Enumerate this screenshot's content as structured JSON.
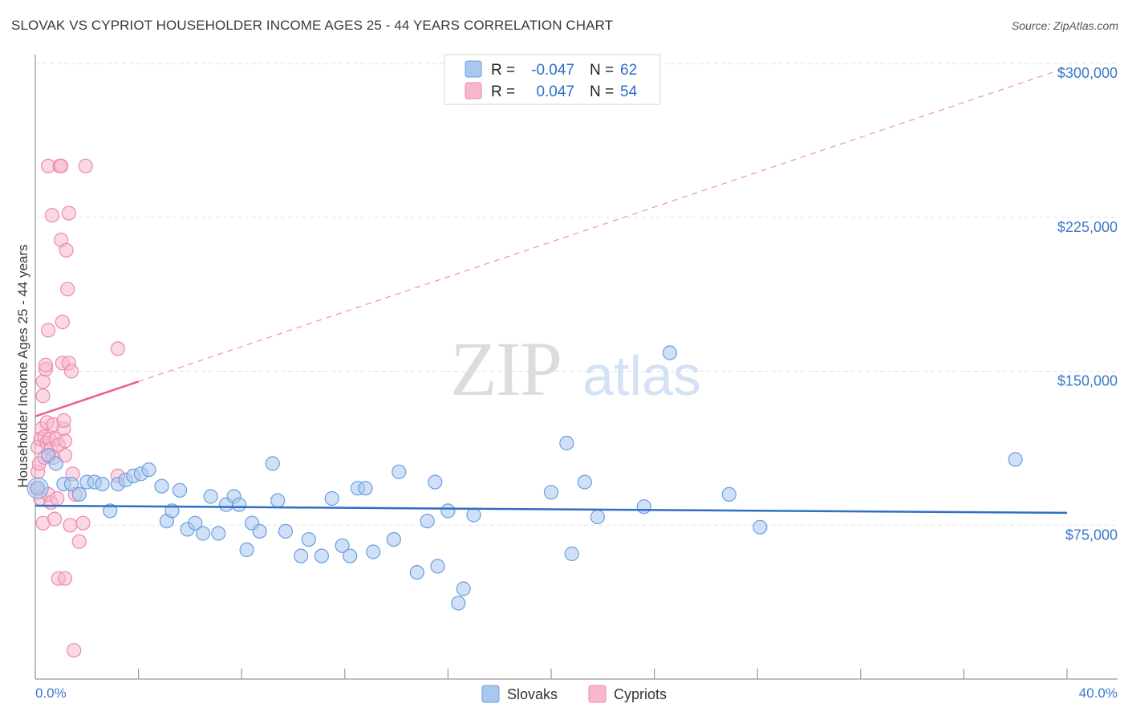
{
  "header": {
    "title": "SLOVAK VS CYPRIOT HOUSEHOLDER INCOME AGES 25 - 44 YEARS CORRELATION CHART",
    "source": "Source: ZipAtlas.com"
  },
  "watermark": {
    "zip": "ZIP",
    "atlas": "atlas"
  },
  "legend_top": {
    "rows": [
      {
        "r_label": "R =",
        "r_value": "-0.047",
        "n_label": "N =",
        "n_value": "62",
        "color": "#a9c8f0"
      },
      {
        "r_label": "R =",
        "r_value": "0.047",
        "n_label": "N =",
        "n_value": "54",
        "color": "#f7b8cc"
      }
    ]
  },
  "legend_bottom": {
    "items": [
      "Slovaks",
      "Cypriots"
    ]
  },
  "colors": {
    "blue_fill": "#a9c8f0",
    "blue_stroke": "#6b9de0",
    "blue_line": "#2f6fc6",
    "pink_fill": "#f7b8cc",
    "pink_stroke": "#ec8aa9",
    "pink_line": "#e8608a",
    "grid": "#e3e3e3",
    "axis_text": "#3b78c9"
  },
  "chart_data": {
    "type": "scatter",
    "title": "SLOVAK VS CYPRIOT HOUSEHOLDER INCOME AGES 25 - 44 YEARS CORRELATION CHART",
    "xlabel": "",
    "ylabel": "Householder Income Ages 25 - 44 years",
    "xlim": [
      0,
      40
    ],
    "ylim": [
      0,
      310000
    ],
    "x_tick_labels": [
      "0.0%",
      "40.0%"
    ],
    "y_ticks": [
      75000,
      150000,
      225000,
      300000
    ],
    "y_tick_labels": [
      "$75,000",
      "$150,000",
      "$225,000",
      "$300,000"
    ],
    "grid": true,
    "series": [
      {
        "name": "Slovaks",
        "r": -0.047,
        "n": 62,
        "trend": {
          "x": [
            0,
            40
          ],
          "y": [
            84500,
            81000
          ],
          "style": "solid"
        },
        "points": [
          [
            0.1,
            93000
          ],
          [
            0.5,
            109000
          ],
          [
            0.8,
            105000
          ],
          [
            1.1,
            95000
          ],
          [
            1.4,
            95000
          ],
          [
            1.7,
            90000
          ],
          [
            2.0,
            96000
          ],
          [
            2.3,
            96000
          ],
          [
            2.6,
            95000
          ],
          [
            2.9,
            82000
          ],
          [
            3.2,
            95000
          ],
          [
            3.5,
            97000
          ],
          [
            3.8,
            99000
          ],
          [
            4.1,
            100000
          ],
          [
            4.4,
            102000
          ],
          [
            4.9,
            94000
          ],
          [
            5.1,
            77000
          ],
          [
            5.3,
            82000
          ],
          [
            5.6,
            92000
          ],
          [
            5.9,
            73000
          ],
          [
            6.2,
            76000
          ],
          [
            6.5,
            71000
          ],
          [
            6.8,
            89000
          ],
          [
            7.1,
            71000
          ],
          [
            7.4,
            85000
          ],
          [
            7.7,
            89000
          ],
          [
            7.9,
            85000
          ],
          [
            8.2,
            63000
          ],
          [
            8.4,
            76000
          ],
          [
            8.7,
            72000
          ],
          [
            9.2,
            105000
          ],
          [
            9.4,
            87000
          ],
          [
            9.7,
            72000
          ],
          [
            10.3,
            60000
          ],
          [
            10.6,
            68000
          ],
          [
            11.1,
            60000
          ],
          [
            11.5,
            88000
          ],
          [
            11.9,
            65000
          ],
          [
            12.2,
            60000
          ],
          [
            12.5,
            93000
          ],
          [
            12.8,
            93000
          ],
          [
            13.1,
            62000
          ],
          [
            13.9,
            68000
          ],
          [
            14.1,
            101000
          ],
          [
            14.8,
            52000
          ],
          [
            15.2,
            77000
          ],
          [
            15.5,
            96000
          ],
          [
            15.6,
            55000
          ],
          [
            16.0,
            82000
          ],
          [
            16.4,
            37000
          ],
          [
            16.6,
            44000
          ],
          [
            17.0,
            80000
          ],
          [
            20.0,
            91000
          ],
          [
            20.6,
            115000
          ],
          [
            20.8,
            61000
          ],
          [
            21.3,
            96000
          ],
          [
            21.8,
            79000
          ],
          [
            23.6,
            84000
          ],
          [
            24.6,
            159000
          ],
          [
            26.9,
            90000
          ],
          [
            28.1,
            74000
          ],
          [
            38.0,
            107000
          ]
        ]
      },
      {
        "name": "Cypriots",
        "r": 0.047,
        "n": 54,
        "trend": {
          "x": [
            0,
            4
          ],
          "y": [
            128000,
            145000
          ],
          "style": "solid",
          "extended": {
            "x": [
              4,
              40
            ],
            "y": [
              145000,
              298000
            ],
            "style": "dashed"
          }
        },
        "points": [
          [
            0.05,
            93000
          ],
          [
            0.1,
            101000
          ],
          [
            0.1,
            113000
          ],
          [
            0.15,
            105000
          ],
          [
            0.2,
            117000
          ],
          [
            0.2,
            88000
          ],
          [
            0.25,
            122000
          ],
          [
            0.3,
            76000
          ],
          [
            0.3,
            145000
          ],
          [
            0.3,
            138000
          ],
          [
            0.35,
            118000
          ],
          [
            0.35,
            108000
          ],
          [
            0.4,
            151000
          ],
          [
            0.4,
            153000
          ],
          [
            0.45,
            125000
          ],
          [
            0.45,
            115000
          ],
          [
            0.5,
            170000
          ],
          [
            0.5,
            250000
          ],
          [
            0.5,
            90000
          ],
          [
            0.55,
            117000
          ],
          [
            0.6,
            112000
          ],
          [
            0.6,
            86000
          ],
          [
            0.65,
            226000
          ],
          [
            0.7,
            124000
          ],
          [
            0.7,
            108000
          ],
          [
            0.75,
            78000
          ],
          [
            0.8,
            117000
          ],
          [
            0.85,
            88000
          ],
          [
            0.9,
            114000
          ],
          [
            0.9,
            49000
          ],
          [
            0.95,
            250000
          ],
          [
            1.0,
            250000
          ],
          [
            1.0,
            214000
          ],
          [
            1.05,
            174000
          ],
          [
            1.05,
            154000
          ],
          [
            1.1,
            122000
          ],
          [
            1.1,
            126000
          ],
          [
            1.15,
            116000
          ],
          [
            1.15,
            49000
          ],
          [
            1.15,
            109000
          ],
          [
            1.2,
            209000
          ],
          [
            1.25,
            190000
          ],
          [
            1.3,
            227000
          ],
          [
            1.3,
            154000
          ],
          [
            1.35,
            75000
          ],
          [
            1.4,
            150000
          ],
          [
            1.45,
            100000
          ],
          [
            1.5,
            14000
          ],
          [
            1.55,
            90000
          ],
          [
            1.7,
            67000
          ],
          [
            1.85,
            76000
          ],
          [
            1.95,
            250000
          ],
          [
            3.2,
            99000
          ],
          [
            3.2,
            161000
          ]
        ]
      }
    ]
  }
}
